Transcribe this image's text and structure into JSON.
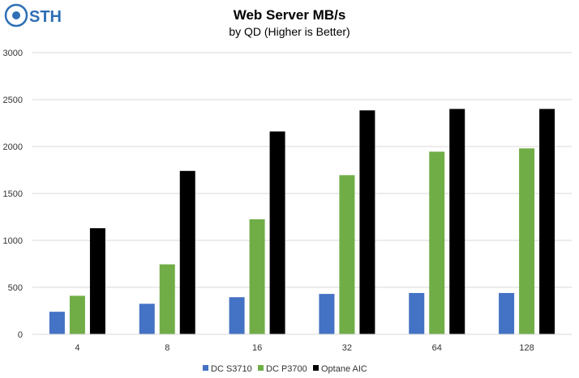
{
  "logo": {
    "text": "STH"
  },
  "chart_data": {
    "type": "bar",
    "title": "Web Server MB/s",
    "subtitle": "by QD (Higher is Better)",
    "categories": [
      "4",
      "8",
      "16",
      "32",
      "64",
      "128"
    ],
    "series": [
      {
        "name": "DC S3710",
        "color": "#4472c4",
        "values": [
          240,
          325,
          395,
          430,
          440,
          440
        ]
      },
      {
        "name": "DC P3700",
        "color": "#70ad47",
        "values": [
          410,
          745,
          1225,
          1695,
          1945,
          1980
        ]
      },
      {
        "name": "Optane AIC",
        "color": "#000000",
        "values": [
          1130,
          1740,
          2160,
          2385,
          2400,
          2400
        ]
      }
    ],
    "ylim": [
      0,
      3000
    ],
    "yticks": [
      0,
      500,
      1000,
      1500,
      2000,
      2500,
      3000
    ],
    "grid": true,
    "legend": "bottom"
  }
}
